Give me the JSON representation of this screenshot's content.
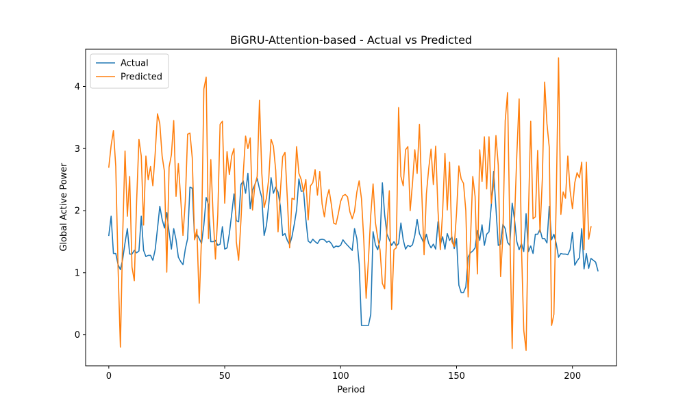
{
  "chart_data": {
    "type": "line",
    "title": "BiGRU-Attention-based - Actual vs Predicted",
    "xlabel": "Period",
    "ylabel": "Global Active Power",
    "xlim": [
      -10,
      219
    ],
    "ylim": [
      -0.5,
      4.6
    ],
    "xticks": [
      0,
      50,
      100,
      150,
      200
    ],
    "yticks": [
      0,
      1,
      2,
      3,
      4
    ],
    "grid": false,
    "legend": "upper-left",
    "series": [
      {
        "name": "Actual",
        "color": "#1f77b4",
        "values": [
          1.6,
          1.91,
          1.31,
          1.31,
          1.13,
          1.05,
          1.22,
          1.48,
          1.71,
          1.3,
          1.3,
          1.36,
          1.32,
          1.35,
          1.91,
          1.36,
          1.26,
          1.28,
          1.28,
          1.2,
          1.37,
          1.71,
          2.07,
          1.86,
          1.72,
          1.97,
          1.66,
          1.38,
          1.71,
          1.53,
          1.25,
          1.18,
          1.13,
          1.38,
          1.55,
          2.38,
          2.36,
          1.55,
          1.62,
          1.55,
          1.47,
          1.77,
          2.21,
          2.1,
          1.5,
          1.5,
          1.52,
          1.44,
          1.46,
          1.74,
          1.38,
          1.4,
          1.63,
          1.94,
          2.27,
          1.84,
          1.82,
          2.42,
          2.48,
          2.28,
          2.6,
          2.03,
          2.33,
          2.42,
          2.52,
          2.35,
          2.21,
          1.6,
          1.76,
          2.1,
          2.53,
          2.28,
          2.38,
          2.3,
          2.07,
          1.6,
          1.63,
          1.52,
          1.45,
          1.58,
          1.78,
          2.01,
          2.51,
          2.31,
          2.32,
          1.86,
          1.51,
          1.48,
          1.54,
          1.5,
          1.47,
          1.53,
          1.54,
          1.53,
          1.49,
          1.51,
          1.47,
          1.4,
          1.43,
          1.42,
          1.44,
          1.53,
          1.48,
          1.44,
          1.4,
          1.36,
          1.71,
          1.55,
          1.14,
          0.15,
          0.15,
          0.15,
          0.15,
          0.33,
          1.66,
          1.45,
          1.37,
          1.53,
          2.45,
          1.93,
          1.62,
          1.53,
          1.44,
          1.5,
          1.43,
          1.47,
          1.8,
          1.53,
          1.38,
          1.44,
          1.42,
          1.45,
          1.6,
          1.86,
          1.63,
          1.55,
          1.47,
          1.62,
          1.47,
          1.4,
          1.46,
          1.38,
          1.82,
          1.45,
          1.58,
          1.38,
          1.63,
          1.52,
          1.58,
          1.39,
          1.55,
          0.8,
          0.68,
          0.68,
          0.77,
          1.25,
          1.32,
          1.35,
          1.4,
          1.68,
          1.52,
          1.77,
          1.44,
          1.62,
          1.66,
          2.09,
          2.63,
          2.04,
          1.44,
          1.46,
          1.78,
          1.71,
          1.49,
          1.44,
          2.12,
          1.86,
          1.5,
          1.37,
          1.47,
          1.34,
          1.95,
          1.34,
          1.43,
          1.31,
          1.62,
          1.62,
          1.7,
          1.55,
          1.55,
          1.48,
          2.07,
          1.53,
          1.62,
          1.47,
          1.25,
          1.31,
          1.3,
          1.3,
          1.29,
          1.37,
          1.65,
          1.12,
          1.19,
          1.24,
          1.71,
          1.06,
          1.31,
          1.07,
          1.23,
          1.2,
          1.17,
          1.03
        ]
      },
      {
        "name": "Predicted",
        "color": "#ff7f0e",
        "values": [
          2.7,
          3.05,
          3.29,
          2.71,
          1.07,
          -0.2,
          1.62,
          2.96,
          1.91,
          2.55,
          1.09,
          0.87,
          2.15,
          3.15,
          2.88,
          1.77,
          2.88,
          2.5,
          2.71,
          2.4,
          2.92,
          3.56,
          3.4,
          2.88,
          2.63,
          1.01,
          2.7,
          2.9,
          3.45,
          2.23,
          2.76,
          2.2,
          1.6,
          2.15,
          3.23,
          3.25,
          2.85,
          1.53,
          1.7,
          0.51,
          1.58,
          3.96,
          4.15,
          1.55,
          2.82,
          1.92,
          1.22,
          1.93,
          3.39,
          3.44,
          2.12,
          2.95,
          2.58,
          2.88,
          3.0,
          1.5,
          1.2,
          1.84,
          2.6,
          3.2,
          3.0,
          3.17,
          2.01,
          2.41,
          2.55,
          3.78,
          2.6,
          2.05,
          2.2,
          2.52,
          3.15,
          3.04,
          2.65,
          1.66,
          2.3,
          2.87,
          2.94,
          2.2,
          1.4,
          2.2,
          2.18,
          3.03,
          2.6,
          2.5,
          2.3,
          2.5,
          1.85,
          2.4,
          2.45,
          2.66,
          2.25,
          2.63,
          2.11,
          1.9,
          2.2,
          2.34,
          2.1,
          1.8,
          1.78,
          1.95,
          2.15,
          2.24,
          2.26,
          2.22,
          1.98,
          1.87,
          1.99,
          2.3,
          2.48,
          2.19,
          1.52,
          0.59,
          1.21,
          1.93,
          2.43,
          1.81,
          1.56,
          1.37,
          0.83,
          0.74,
          1.74,
          2.32,
          0.41,
          1.37,
          1.4,
          3.66,
          2.55,
          2.4,
          2.98,
          3.03,
          2.0,
          2.44,
          2.98,
          2.6,
          3.39,
          2.29,
          1.29,
          2.27,
          2.68,
          2.99,
          2.42,
          3.04,
          2.0,
          1.37,
          1.98,
          2.92,
          2.01,
          2.78,
          1.5,
          1.42,
          1.96,
          2.72,
          2.51,
          2.44,
          2.0,
          0.61,
          1.52,
          2.55,
          2.23,
          0.98,
          2.98,
          2.47,
          3.19,
          2.35,
          3.19,
          2.12,
          2.43,
          3.21,
          2.73,
          0.94,
          1.6,
          3.45,
          3.9,
          1.66,
          -0.22,
          1.84,
          2.9,
          3.8,
          1.43,
          0.07,
          -0.25,
          1.92,
          3.44,
          1.87,
          1.9,
          2.97,
          1.65,
          2.5,
          4.07,
          3.4,
          3.02,
          0.15,
          0.33,
          2.18,
          4.46,
          1.94,
          2.3,
          2.2,
          2.88,
          2.32,
          2.03,
          2.45,
          2.61,
          2.53,
          2.78,
          1.37,
          2.78,
          1.54,
          1.74
        ]
      }
    ]
  }
}
